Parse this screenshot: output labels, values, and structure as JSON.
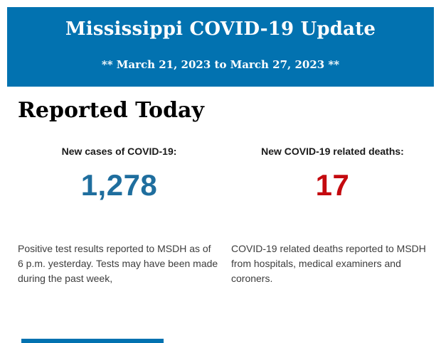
{
  "header": {
    "title": "Mississippi COVID-19 Update",
    "subtitle": "** March 21, 2023 to March 27, 2023 **",
    "background_color": "#0272b0",
    "text_color": "#ffffff"
  },
  "section": {
    "title": "Reported Today"
  },
  "stats": [
    {
      "label": "New cases of COVID-19:",
      "value": "1,278",
      "value_color": "#1f6e9e",
      "description": "Positive test results reported to MSDH as of 6 p.m. yesterday. Tests may have been made during the past week,"
    },
    {
      "label": "New COVID-19 related deaths:",
      "value": "17",
      "value_color": "#c40a0f",
      "description": "COVID-19 related deaths reported to MSDH from hospitals, medical examiners and coroners."
    }
  ],
  "footer": {
    "next_section_peek_color": "#0272b0"
  }
}
